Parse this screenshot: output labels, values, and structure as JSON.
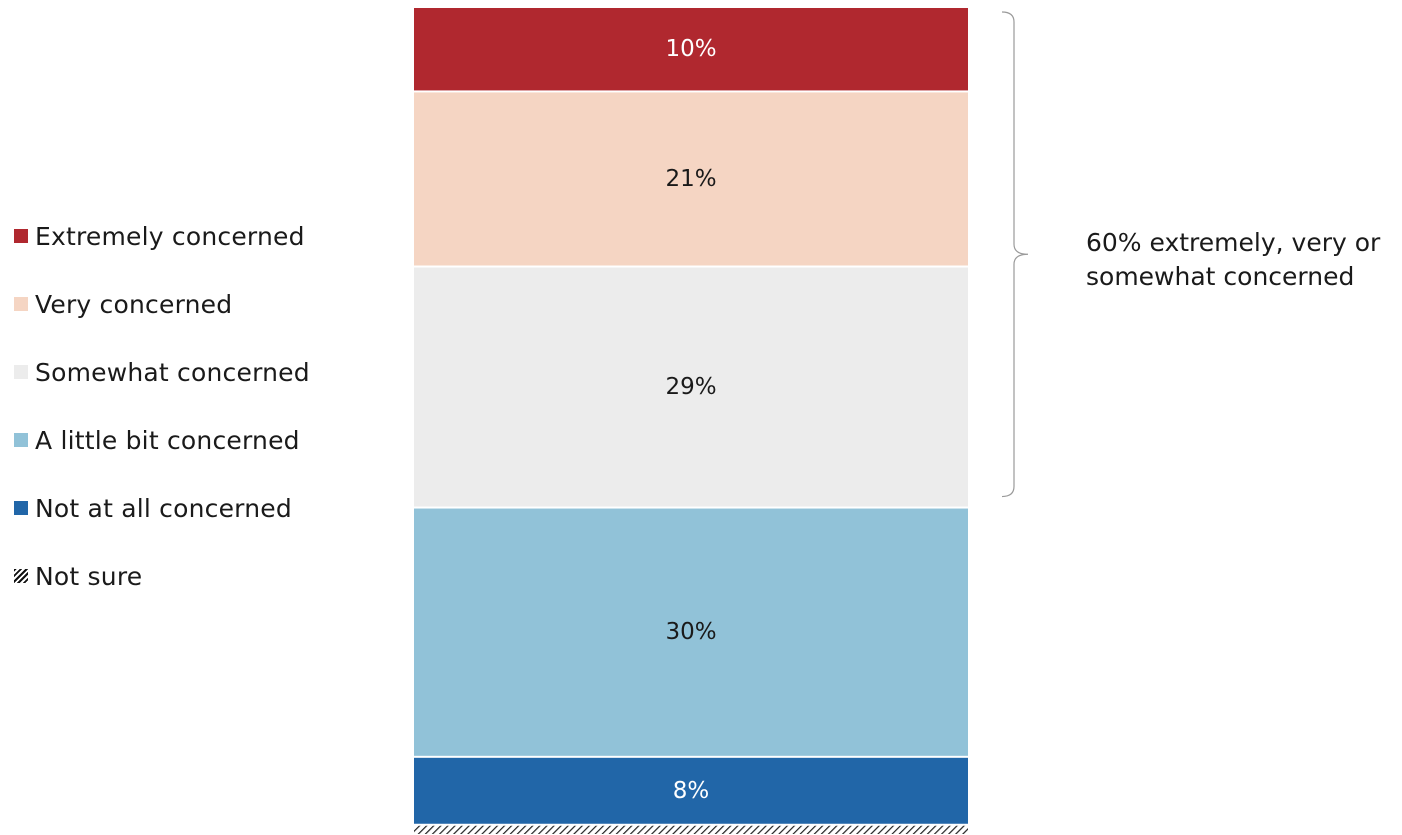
{
  "chart_data": {
    "type": "bar",
    "stacked": true,
    "orientation": "vertical",
    "series": [
      {
        "name": "Extremely concerned",
        "value": 10,
        "label": "10%",
        "color": "#b0282f",
        "label_color": "#ffffff"
      },
      {
        "name": "Very concerned",
        "value": 21,
        "label": "21%",
        "color": "#f5d5c3",
        "label_color": "#1a1a1a"
      },
      {
        "name": "Somewhat concerned",
        "value": 29,
        "label": "29%",
        "color": "#ececec",
        "label_color": "#1a1a1a"
      },
      {
        "name": "A little bit concerned",
        "value": 30,
        "label": "30%",
        "color": "#91c2d8",
        "label_color": "#1a1a1a"
      },
      {
        "name": "Not at all concerned",
        "value": 8,
        "label": "8%",
        "color": "#2166a8",
        "label_color": "#ffffff"
      },
      {
        "name": "Not sure",
        "value": 1,
        "label": "",
        "color": "hatch",
        "label_color": "#1a1a1a"
      }
    ],
    "legend_position": "left",
    "annotation": {
      "text": "60% extremely, very or somewhat concerned",
      "spans": [
        "Extremely concerned",
        "Very concerned",
        "Somewhat concerned"
      ]
    },
    "grid": false
  }
}
